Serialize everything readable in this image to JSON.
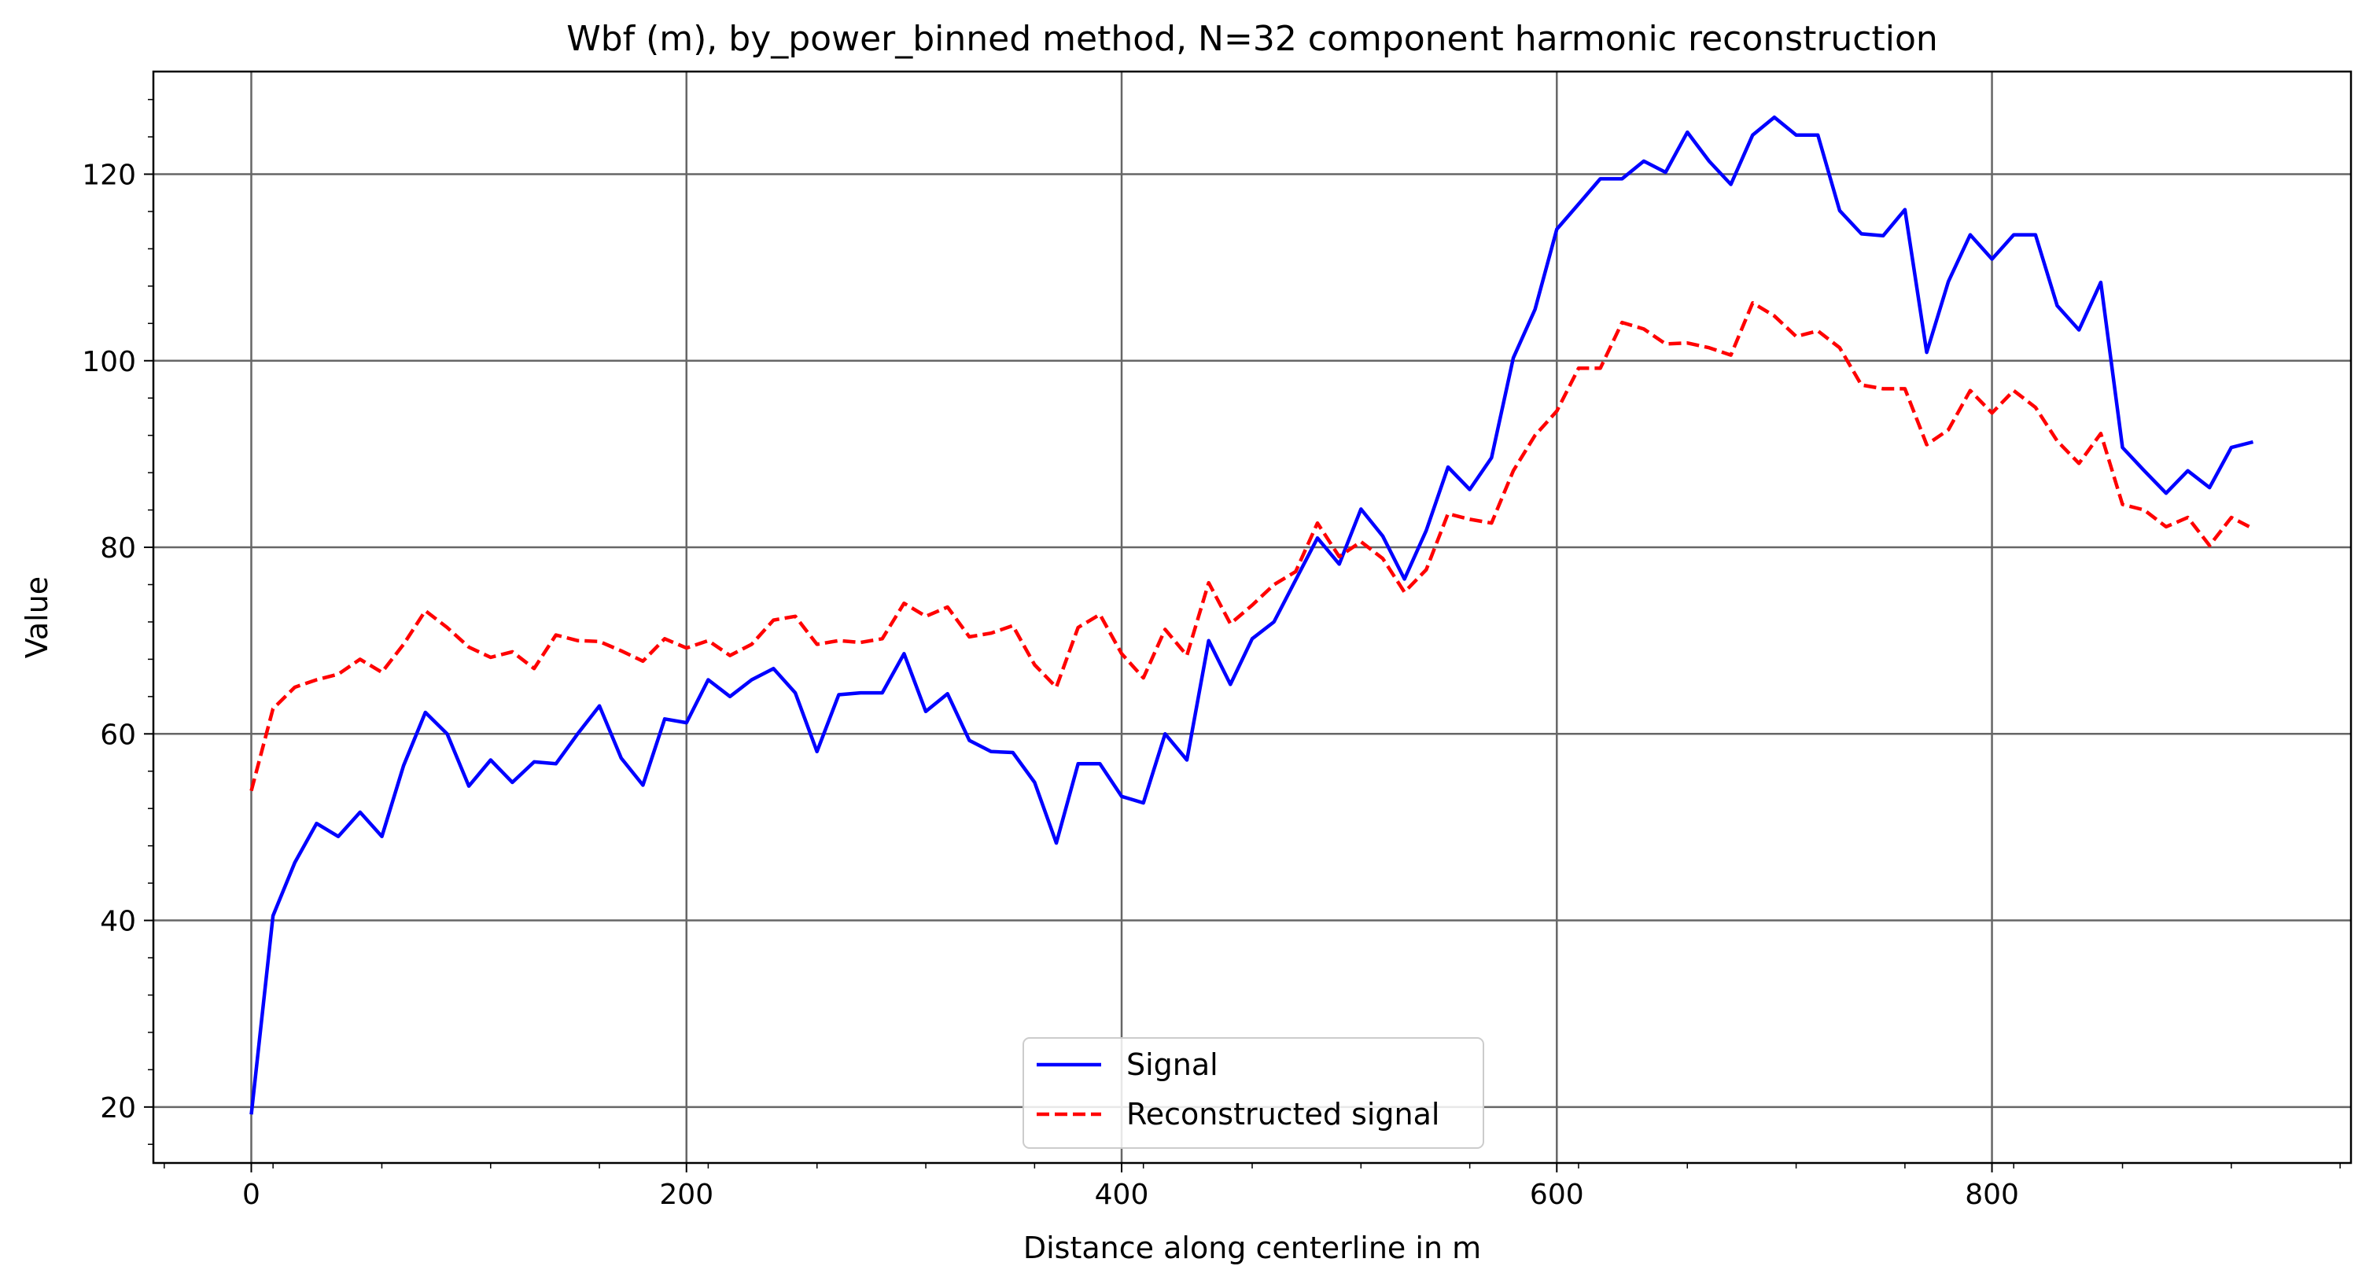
{
  "chart_data": {
    "type": "line",
    "title": "Wbf (m), by_power_binned method, N=32 component harmonic reconstruction",
    "xlabel": "Distance along centerline in m",
    "ylabel": "Value",
    "xlim": [
      -45,
      965
    ],
    "ylim": [
      14,
      131
    ],
    "xticks": [
      0,
      200,
      400,
      600,
      800
    ],
    "yticks": [
      20,
      40,
      60,
      80,
      100,
      120
    ],
    "grid": true,
    "legend": "lower center",
    "x": [
      0,
      10,
      20,
      30,
      40,
      50,
      60,
      70,
      80,
      90,
      100,
      110,
      120,
      130,
      140,
      150,
      160,
      170,
      180,
      190,
      200,
      210,
      220,
      230,
      240,
      250,
      260,
      270,
      280,
      290,
      300,
      310,
      320,
      330,
      340,
      350,
      360,
      370,
      380,
      390,
      400,
      410,
      420,
      430,
      440,
      450,
      460,
      470,
      480,
      490,
      500,
      510,
      520,
      530,
      540,
      550,
      560,
      570,
      580,
      590,
      600,
      610,
      620,
      630,
      640,
      650,
      660,
      670,
      680,
      690,
      700,
      710,
      720,
      730,
      740,
      750,
      760,
      770,
      780,
      790,
      800,
      810,
      820,
      830,
      840,
      850,
      860,
      870,
      880,
      890,
      900,
      910,
      920
    ],
    "series": [
      {
        "name": "Signal",
        "color": "#0000ff",
        "style": "solid",
        "values": [
          19.2,
          40.5,
          46.2,
          50.4,
          49.0,
          51.6,
          49.0,
          56.6,
          62.3,
          60.0,
          54.4,
          57.2,
          54.8,
          57.0,
          56.8,
          60.0,
          63.0,
          57.4,
          54.5,
          61.6,
          61.2,
          65.8,
          64.0,
          65.8,
          67.0,
          64.4,
          58.1,
          64.2,
          64.4,
          64.4,
          68.6,
          62.4,
          64.3,
          59.3,
          58.1,
          58.0,
          54.8,
          48.3,
          56.8,
          56.8,
          53.3,
          52.6,
          60.0,
          57.2,
          70.0,
          65.3,
          70.2,
          72.0,
          76.5,
          81.0,
          78.2,
          84.1,
          81.2,
          76.6,
          81.8,
          88.6,
          86.2,
          89.6,
          100.3,
          105.5,
          114.1,
          116.8,
          119.5,
          119.5,
          121.4,
          120.2,
          124.5,
          121.4,
          118.9,
          124.2,
          126.1,
          124.2,
          124.2,
          116.1,
          113.6,
          113.4,
          116.2,
          100.9,
          108.5,
          113.5,
          110.9,
          113.5,
          113.5,
          105.9,
          103.3,
          108.4,
          90.7,
          88.2,
          85.8,
          88.2,
          86.4,
          90.7,
          91.3
        ]
      },
      {
        "name": "Reconstructed signal",
        "color": "#ff0000",
        "style": "dashed",
        "values": [
          53.9,
          62.7,
          65.0,
          65.8,
          66.4,
          68.0,
          66.6,
          69.6,
          73.2,
          71.4,
          69.3,
          68.2,
          68.8,
          67.0,
          70.6,
          70.0,
          69.9,
          68.9,
          67.8,
          70.2,
          69.2,
          70.0,
          68.4,
          69.6,
          72.2,
          72.6,
          69.6,
          70.0,
          69.8,
          70.2,
          74.0,
          72.6,
          73.6,
          70.4,
          70.8,
          71.6,
          67.4,
          65.0,
          71.4,
          72.8,
          68.6,
          66.0,
          71.2,
          68.4,
          76.2,
          71.8,
          73.8,
          76.0,
          77.4,
          82.6,
          79.0,
          80.6,
          78.8,
          75.2,
          77.6,
          83.6,
          83.0,
          82.6,
          88.2,
          92.0,
          94.6,
          99.2,
          99.2,
          104.1,
          103.4,
          101.8,
          101.9,
          101.4,
          100.6,
          106.2,
          104.8,
          102.6,
          103.2,
          101.4,
          97.4,
          97.0,
          97.0,
          91.0,
          92.6,
          96.8,
          94.4,
          96.8,
          95.0,
          91.4,
          89.0,
          92.2,
          84.6,
          84.0,
          82.2,
          83.2,
          80.2,
          83.2,
          82.0
        ]
      }
    ]
  }
}
